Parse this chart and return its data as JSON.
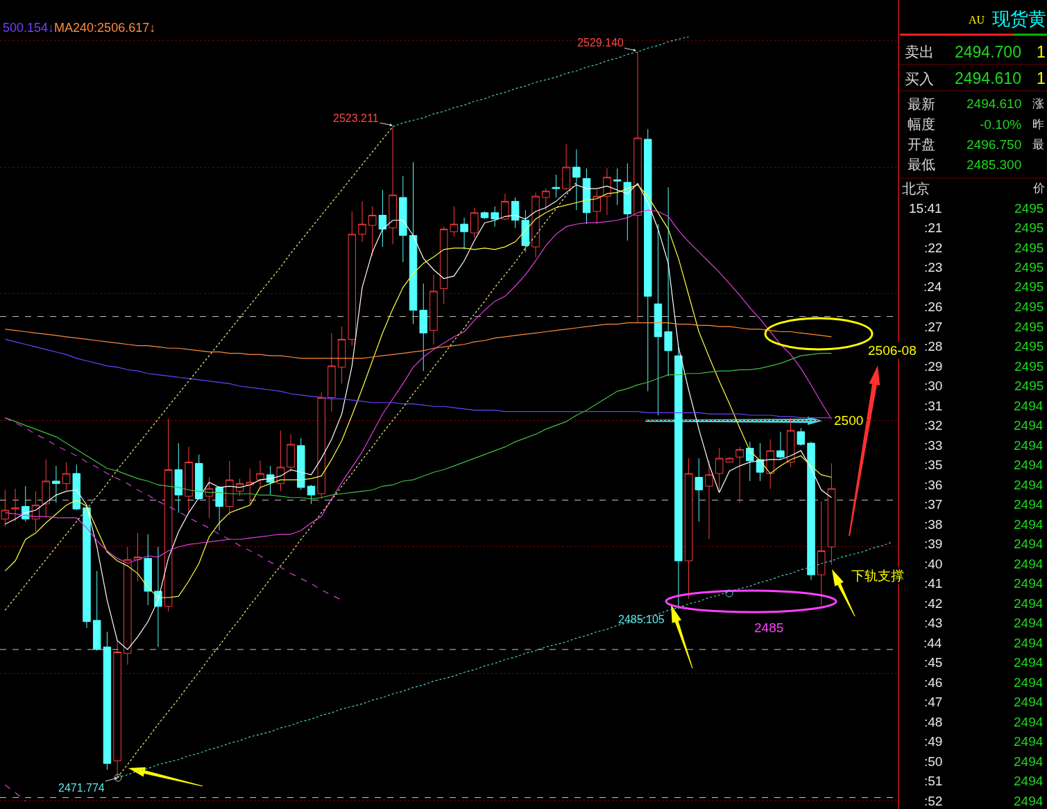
{
  "chart_data": [
    {
      "type": "candlestick",
      "categories": [
        null,
        null,
        null,
        null,
        null,
        null,
        null,
        null,
        null,
        null,
        null,
        null,
        null,
        null,
        null,
        null,
        null,
        null,
        null,
        null,
        null,
        null,
        null,
        null,
        null,
        null,
        null,
        null,
        null,
        null,
        null,
        null,
        null,
        null,
        null,
        null,
        null,
        null,
        null,
        null,
        null,
        null,
        null,
        null,
        null,
        null,
        null,
        null,
        null,
        null,
        null,
        null,
        null,
        null,
        null,
        null,
        null,
        null,
        null,
        null,
        null,
        null,
        null,
        null,
        null,
        null,
        null,
        null,
        null,
        null,
        null,
        null,
        null,
        null,
        null,
        null,
        null,
        null,
        null,
        null,
        null,
        null,
        null,
        null,
        null,
        null,
        null,
        null
      ],
      "ohlc": [
        [
          2492.2,
          2494.5,
          2491.6,
          2492.9
        ],
        [
          2493.0,
          2494.6,
          2492.0,
          2493.1
        ],
        [
          2493.2,
          2494.8,
          2492.0,
          2492.2
        ],
        [
          2492.2,
          2494.4,
          2491.2,
          2493.3
        ],
        [
          2493.4,
          2496.9,
          2492.3,
          2495.2
        ],
        [
          2495.2,
          2496.4,
          2493.5,
          2495.0
        ],
        [
          2495.0,
          2496.7,
          2494.5,
          2495.8
        ],
        [
          2495.8,
          2496.5,
          2492.9,
          2493.0
        ],
        [
          2493.1,
          2493.3,
          2483.6,
          2484.1
        ],
        [
          2484.2,
          2488.1,
          2481.8,
          2481.9
        ],
        [
          2482.1,
          2483.3,
          2472.4,
          2472.9
        ],
        [
          2473.1,
          2482.6,
          2471.774,
          2481.7
        ],
        [
          2481.6,
          2490.0,
          2480.7,
          2489.0
        ],
        [
          2489.0,
          2491.1,
          2487.3,
          2489.2
        ],
        [
          2489.1,
          2491.0,
          2485.4,
          2486.5
        ],
        [
          2486.5,
          2490.0,
          2482.1,
          2485.3
        ],
        [
          2485.3,
          2500.1,
          2484.9,
          2496.1
        ],
        [
          2496.1,
          2498.2,
          2492.7,
          2494.1
        ],
        [
          2494.0,
          2497.9,
          2492.7,
          2496.7
        ],
        [
          2496.6,
          2497.3,
          2493.7,
          2493.8
        ],
        [
          2494.0,
          2495.5,
          2492.3,
          2494.6
        ],
        [
          2494.7,
          2494.8,
          2491.3,
          2493.2
        ],
        [
          2493.2,
          2496.8,
          2492.5,
          2495.3
        ],
        [
          2494.4,
          2495.4,
          2494.0,
          2495.0
        ],
        [
          2494.9,
          2496.2,
          2493.3,
          2495.1
        ],
        [
          2495.3,
          2496.8,
          2494.7,
          2495.8
        ],
        [
          2495.7,
          2496.4,
          2494.1,
          2495.1
        ],
        [
          2495.0,
          2499.2,
          2494.4,
          2496.3
        ],
        [
          2496.3,
          2498.9,
          2495.9,
          2498.1
        ],
        [
          2498.0,
          2498.6,
          2494.5,
          2494.7
        ],
        [
          2494.8,
          2494.9,
          2493.4,
          2494.1
        ],
        [
          2494.2,
          2502.2,
          2493.8,
          2501.8
        ],
        [
          2501.8,
          2506.9,
          2500.7,
          2504.3
        ],
        [
          2504.2,
          2507.4,
          2502.9,
          2506.4
        ],
        [
          2506.4,
          2516.5,
          2505.9,
          2514.7
        ],
        [
          2514.7,
          2517.3,
          2514.1,
          2515.5
        ],
        [
          2515.4,
          2516.9,
          2513.0,
          2516.2
        ],
        [
          2516.2,
          2518.2,
          2513.7,
          2515.1
        ],
        [
          2515.2,
          2523.211,
          2513.9,
          2517.8
        ],
        [
          2517.6,
          2519.3,
          2512.5,
          2514.6
        ],
        [
          2514.6,
          2520.4,
          2507.6,
          2508.7
        ],
        [
          2508.7,
          2510.8,
          2503.9,
          2506.9
        ],
        [
          2507.1,
          2511.5,
          2506.0,
          2510.2
        ],
        [
          2510.4,
          2515.3,
          2509.2,
          2515.1
        ],
        [
          2514.9,
          2516.9,
          2514.5,
          2515.5
        ],
        [
          2515.5,
          2516.0,
          2513.5,
          2514.9
        ],
        [
          2514.8,
          2516.8,
          2514.4,
          2516.4
        ],
        [
          2516.4,
          2516.5,
          2515.9,
          2516.0
        ],
        [
          2516.4,
          2516.9,
          2515.3,
          2515.9
        ],
        [
          2515.9,
          2517.9,
          2515.8,
          2517.3
        ],
        [
          2517.3,
          2517.6,
          2515.2,
          2515.8
        ],
        [
          2515.8,
          2516.6,
          2513.3,
          2513.8
        ],
        [
          2513.7,
          2518.0,
          2512.9,
          2517.7
        ],
        [
          2517.6,
          2518.3,
          2516.6,
          2518.1
        ],
        [
          2518.4,
          2519.4,
          2517.6,
          2518.3
        ],
        [
          2518.3,
          2521.8,
          2518.2,
          2520.0
        ],
        [
          2520.0,
          2521.4,
          2516.6,
          2519.2
        ],
        [
          2519.1,
          2519.9,
          2515.5,
          2516.4
        ],
        [
          2516.5,
          2518.2,
          2515.5,
          2517.7
        ],
        [
          2517.7,
          2519.9,
          2516.2,
          2519.2
        ],
        [
          2519.0,
          2519.9,
          2517.0,
          2518.9
        ],
        [
          2518.8,
          2520.3,
          2514.2,
          2516.3
        ],
        [
          2516.2,
          2529.14,
          2507.7,
          2522.3
        ],
        [
          2522.2,
          2523.0,
          2502.3,
          2509.8
        ],
        [
          2509.2,
          2515.5,
          2500.4,
          2506.6
        ],
        [
          2507.0,
          2518.4,
          2503.5,
          2505.5
        ],
        [
          2505.1,
          2505.8,
          2485.105,
          2488.9
        ],
        [
          2488.9,
          2497.0,
          2485.9,
          2495.8
        ],
        [
          2495.5,
          2497.0,
          2492.0,
          2494.5
        ],
        [
          2494.8,
          2496.8,
          2490.6,
          2495.7
        ],
        [
          2495.8,
          2497.8,
          2494.3,
          2497.0
        ],
        [
          2496.7,
          2497.1,
          2496.7,
          2497.0
        ],
        [
          2497.1,
          2497.9,
          2493.5,
          2497.7
        ],
        [
          2497.8,
          2498.3,
          2495.2,
          2496.8
        ],
        [
          2496.9,
          2498.2,
          2495.2,
          2495.9
        ],
        [
          2495.8,
          2498.5,
          2494.6,
          2497.6
        ],
        [
          2497.6,
          2499.1,
          2496.9,
          2497.1
        ],
        [
          2496.7,
          2500.2,
          2496.3,
          2499.2
        ],
        [
          2499.1,
          2499.4,
          2498.0,
          2498.1
        ],
        [
          2498.2,
          2498.3,
          2487.4,
          2487.8
        ],
        [
          2487.8,
          2493.6,
          2485.4,
          2489.7
        ],
        [
          2490.0,
          2496.6,
          2488.6,
          2494.6
        ],
        null,
        null,
        null,
        null,
        null,
        null
      ],
      "colors": [
        "#ff3c3c",
        "#ff3c3c",
        "#54ffff",
        "#ff3c3c",
        "#ff3c3c",
        "#54ffff",
        "#ff3c3c",
        "#54ffff",
        "#54ffff",
        "#54ffff",
        "#54ffff",
        "#ff3c3c",
        "#ff3c3c",
        "#ff3c3c",
        "#54ffff",
        "#54ffff",
        "#ff3c3c",
        "#54ffff",
        "#ff3c3c",
        "#54ffff",
        "#ff3c3c",
        "#54ffff",
        "#ff3c3c",
        "#ff3c3c",
        "#ff3c3c",
        "#ff3c3c",
        "#54ffff",
        "#ff3c3c",
        "#ff3c3c",
        "#54ffff",
        "#54ffff",
        "#ff3c3c",
        "#ff3c3c",
        "#ff3c3c",
        "#ff3c3c",
        "#ff3c3c",
        "#ff3c3c",
        "#54ffff",
        "#ff3c3c",
        "#54ffff",
        "#54ffff",
        "#54ffff",
        "#ff3c3c",
        "#ff3c3c",
        "#ff3c3c",
        "#54ffff",
        "#ff3c3c",
        "#54ffff",
        "#54ffff",
        "#ff3c3c",
        "#54ffff",
        "#54ffff",
        "#ff3c3c",
        "#ff3c3c",
        "#54ffff",
        "#ff3c3c",
        "#54ffff",
        "#54ffff",
        "#ff3c3c",
        "#ff3c3c",
        "#54ffff",
        "#54ffff",
        "#ff3c3c",
        "#54ffff",
        "#54ffff",
        "#54ffff",
        "#54ffff",
        "#ff3c3c",
        "#54ffff",
        "#ff3c3c",
        "#ff3c3c",
        "#ff3c3c",
        "#ff3c3c",
        "#54ffff",
        "#54ffff",
        "#ff3c3c",
        "#54ffff",
        "#ff3c3c",
        "#54ffff",
        "#54ffff",
        "#ff3c3c",
        "#ff3c3c",
        null,
        null,
        null,
        null,
        null,
        null
      ],
      "series": [
        {
          "type": "line",
          "color": "#ffffff",
          "values": [
            2491.8,
            2492.2,
            2492.7,
            2492.9,
            2493.5,
            2494.1,
            2494.4,
            2494.5,
            2493.3,
            2490.0,
            2485.8,
            2482.6,
            2481.9,
            2482.9,
            2484.1,
            2485.8,
            2489.1,
            2491.2,
            2492.7,
            2493.9,
            2495.1,
            2494.7,
            2494.8,
            2494.7,
            2494.9,
            2495.3,
            2495.4,
            2495.6,
            2496.1,
            2495.9,
            2495.7,
            2497.0,
            2498.5,
            2500.5,
            2504.3,
            2510.5,
            2513.3,
            2515.1,
            2515.8,
            2515.8,
            2514.6,
            2512.8,
            2511.9,
            2511.2,
            2511.4,
            2512.6,
            2514.2,
            2515.6,
            2515.8,
            2516.1,
            2516.2,
            2515.9,
            2516.5,
            2516.8,
            2517.3,
            2518.0,
            2518.6,
            2518.3,
            2518.3,
            2518.5,
            2518.2,
            2517.9,
            2518.7,
            2517.2,
            2515.1,
            2512.4,
            2505.8,
            2502.4,
            2499.3,
            2496.5,
            2494.3,
            2496.0,
            2496.4,
            2496.7,
            2496.8,
            2496.9,
            2496.9,
            2497.2,
            2497.6,
            2496.2,
            2494.5,
            2493.9,
            null,
            null,
            null,
            null,
            null,
            null
          ]
        },
        {
          "type": "line",
          "color": "#ffff40",
          "values": [
            2488.1,
            2488.9,
            2490.6,
            2491.1,
            2491.9,
            2492.6,
            2493.3,
            2493.7,
            2493.2,
            2491.4,
            2489.6,
            2488.9,
            2488.5,
            2487.9,
            2486.8,
            2486.0,
            2486.0,
            2486.1,
            2487.3,
            2488.7,
            2490.8,
            2491.9,
            2492.7,
            2493.0,
            2493.3,
            2494.7,
            2495.0,
            2495.3,
            2495.3,
            2495.3,
            2495.4,
            2495.6,
            2496.9,
            2498.4,
            2500.4,
            2502.5,
            2504.7,
            2506.9,
            2508.8,
            2510.5,
            2511.6,
            2512.4,
            2512.9,
            2513.5,
            2513.6,
            2513.6,
            2513.5,
            2513.6,
            2513.5,
            2513.7,
            2514.1,
            2515.0,
            2515.9,
            2516.4,
            2516.8,
            2517.0,
            2517.2,
            2517.4,
            2517.5,
            2517.9,
            2518.0,
            2518.3,
            2518.6,
            2517.7,
            2516.4,
            2515.1,
            2512.8,
            2509.9,
            2507.0,
            2505.0,
            2503.1,
            2501.3,
            2499.4,
            2497.6,
            2496.8,
            2495.8,
            2496.4,
            2496.9,
            2497.2,
            2496.4,
            2495.7,
            2495.5,
            null,
            null,
            null,
            null,
            null,
            null
          ]
        },
        {
          "type": "line",
          "color": "#e040e0",
          "values": [
            2492.7,
            2492.6,
            2492.5,
            2492.4,
            2492.4,
            2492.3,
            2492.3,
            2492.3,
            2491.5,
            2490.5,
            2489.7,
            2489.1,
            2488.7,
            2489.0,
            2489.3,
            2489.2,
            2489.7,
            2490.0,
            2490.2,
            2490.3,
            2490.4,
            2490.5,
            2490.6,
            2490.6,
            2490.7,
            2490.8,
            2490.9,
            2491.0,
            2491.0,
            2491.3,
            2491.9,
            2492.4,
            2493.8,
            2495.1,
            2496.3,
            2497.5,
            2499.0,
            2500.5,
            2501.7,
            2502.9,
            2504.2,
            2505.0,
            2505.6,
            2506.1,
            2506.6,
            2507.0,
            2507.9,
            2508.7,
            2509.4,
            2509.8,
            2510.6,
            2511.5,
            2512.6,
            2513.8,
            2514.7,
            2515.3,
            2515.5,
            2515.6,
            2515.6,
            2515.7,
            2515.8,
            2516.0,
            2516.4,
            2516.6,
            2516.5,
            2516.1,
            2515.0,
            2514.1,
            2513.3,
            2512.5,
            2511.7,
            2510.8,
            2509.9,
            2508.9,
            2508.0,
            2507.0,
            2506.0,
            2505.2,
            2504.1,
            2502.8,
            2501.4,
            2500.1,
            null,
            null,
            null,
            null,
            null,
            null
          ]
        },
        {
          "type": "line",
          "color": "#40c040",
          "values": [
            2500.2,
            2499.9,
            2499.6,
            2499.3,
            2499.0,
            2498.7,
            2498.2,
            2497.7,
            2497.2,
            2496.7,
            2496.2,
            2496.0,
            2495.7,
            2495.4,
            2495.2,
            2494.9,
            2494.8,
            2494.7,
            2494.5,
            2494.4,
            2494.3,
            2494.3,
            2494.2,
            2494.2,
            2494.2,
            2494.1,
            2494.1,
            2494.0,
            2493.9,
            2493.9,
            2493.8,
            2493.9,
            2494.1,
            2494.2,
            2494.3,
            2494.4,
            2494.5,
            2494.8,
            2494.9,
            2495.2,
            2495.3,
            2495.6,
            2495.9,
            2496.1,
            2496.4,
            2496.7,
            2497.0,
            2497.3,
            2497.6,
            2497.9,
            2498.3,
            2498.6,
            2498.9,
            2499.3,
            2499.6,
            2499.9,
            2500.4,
            2500.8,
            2501.3,
            2501.8,
            2502.3,
            2502.5,
            2502.8,
            2503.0,
            2503.3,
            2503.6,
            2503.6,
            2503.7,
            2503.7,
            2503.8,
            2503.9,
            2503.9,
            2504.0,
            2504.0,
            2504.1,
            2504.3,
            2504.5,
            2504.8,
            2505.1,
            2505.2,
            2505.3,
            2505.3,
            null,
            null,
            null,
            null,
            null,
            null
          ]
        },
        {
          "type": "line",
          "name": "500.154↓",
          "color": "#7040ff",
          "values": [
            2506.4,
            2506.2,
            2506.0,
            2505.8,
            2505.6,
            2505.4,
            2505.2,
            2504.9,
            2504.7,
            2504.5,
            2504.3,
            2504.2,
            2504.0,
            2503.9,
            2503.7,
            2503.6,
            2503.5,
            2503.4,
            2503.3,
            2503.2,
            2503.1,
            2503.0,
            2502.9,
            2502.7,
            2502.6,
            2502.5,
            2502.4,
            2502.3,
            2502.1,
            2502.0,
            2501.9,
            2501.8,
            2501.7,
            2501.7,
            2501.6,
            2501.5,
            2501.4,
            2501.4,
            2501.4,
            2501.3,
            2501.3,
            2501.2,
            2501.1,
            2501.1,
            2501.0,
            2500.9,
            2500.8,
            2500.8,
            2500.8,
            2500.7,
            2500.7,
            2500.7,
            2500.7,
            2500.7,
            2500.7,
            2500.7,
            2500.7,
            2500.7,
            2500.7,
            2500.7,
            2500.7,
            2500.7,
            2500.7,
            2500.6,
            2500.6,
            2500.6,
            2500.6,
            2500.6,
            2500.6,
            2500.5,
            2500.5,
            2500.5,
            2500.5,
            2500.4,
            2500.4,
            2500.4,
            2500.3,
            2500.3,
            2500.2,
            2500.2,
            2500.2,
            2500.2,
            null,
            null,
            null,
            null,
            null,
            null
          ]
        },
        {
          "type": "line",
          "name": "MA240:2506.617↓",
          "color": "#ff8c3c",
          "values": [
            2507.2,
            2507.1,
            2507.0,
            2506.9,
            2506.8,
            2506.7,
            2506.6,
            2506.5,
            2506.4,
            2506.3,
            2506.2,
            2506.1,
            2506.0,
            2505.9,
            2505.9,
            2505.8,
            2505.7,
            2505.7,
            2505.6,
            2505.5,
            2505.4,
            2505.4,
            2505.3,
            2505.3,
            2505.2,
            2505.2,
            2505.1,
            2505.1,
            2505.0,
            2504.9,
            2504.9,
            2504.9,
            2504.9,
            2504.9,
            2504.9,
            2504.9,
            2505.0,
            2505.1,
            2505.2,
            2505.3,
            2505.4,
            2505.5,
            2505.7,
            2505.8,
            2505.9,
            2506.0,
            2506.2,
            2506.3,
            2506.5,
            2506.6,
            2506.7,
            2506.8,
            2506.9,
            2507.0,
            2507.1,
            2507.2,
            2507.3,
            2507.4,
            2507.5,
            2507.6,
            2507.6,
            2507.7,
            2507.7,
            2507.7,
            2507.7,
            2507.7,
            2507.6,
            2507.6,
            2507.5,
            2507.5,
            2507.4,
            2507.4,
            2507.3,
            2507.2,
            2507.2,
            2507.1,
            2507.0,
            2507.0,
            2506.9,
            2506.8,
            2506.7,
            2506.6,
            null,
            null,
            null,
            null,
            null,
            null
          ]
        },
        {
          "type": "line",
          "color": "#f0f080",
          "line_style": "dotted",
          "values": [
            2485.0,
            2486.0,
            2487.0,
            2488.0,
            2489.0,
            2490.0,
            2491.0,
            2492.0,
            2493.0,
            2494.0,
            2495.0,
            2496.1,
            2497.1,
            2498.1,
            2499.1,
            2500.1,
            2501.1,
            2502.1,
            2503.1,
            2504.1,
            2505.1,
            2506.1,
            2507.1,
            2508.1,
            2509.1,
            2510.1,
            2511.1,
            2512.1,
            2513.2,
            2514.2,
            2515.2,
            2516.2,
            2517.2,
            2518.2,
            2519.2,
            2520.2,
            2521.2,
            2522.2,
            2523.2,
            null,
            null,
            null,
            null,
            null,
            null,
            null,
            null,
            null,
            null,
            null,
            null,
            null,
            null,
            null,
            null,
            null,
            null,
            null,
            null,
            null,
            null,
            null,
            null,
            null,
            null,
            null,
            null,
            null,
            null,
            null,
            null,
            null,
            null,
            null,
            null,
            null,
            null,
            null,
            null,
            null,
            null,
            null,
            null,
            null,
            null,
            null,
            null,
            null
          ]
        },
        {
          "type": "line",
          "color": "#f0f080",
          "line_style": "dotted",
          "values": [
            null,
            null,
            null,
            null,
            null,
            null,
            null,
            null,
            null,
            null,
            null,
            2471.8,
            2472.8,
            2473.9,
            2474.9,
            2476.0,
            2477.0,
            2478.0,
            2479.1,
            2480.1,
            2481.2,
            2482.2,
            2483.3,
            2484.3,
            2485.4,
            2486.4,
            2487.5,
            2488.5,
            2489.5,
            2490.6,
            2491.6,
            2492.7,
            2493.7,
            2494.8,
            2495.8,
            2496.9,
            2497.9,
            2499.0,
            2500.0,
            2501.0,
            2502.1,
            2503.1,
            2504.2,
            2505.2,
            2506.3,
            2507.3,
            2508.4,
            2509.4,
            2510.5,
            2511.5,
            2512.5,
            2513.6,
            2514.6,
            2515.7,
            2516.7,
            2517.8,
            2518.8,
            null,
            null,
            null,
            null,
            null,
            null,
            null,
            null,
            null,
            null,
            null,
            null,
            null,
            null,
            null,
            null,
            null,
            null,
            null,
            null,
            null,
            null,
            null,
            null,
            null,
            null,
            null,
            null,
            null,
            null,
            null
          ]
        },
        {
          "type": "line",
          "color": "#50d0d0",
          "line_style": "dotted",
          "values": [
            null,
            null,
            null,
            null,
            null,
            null,
            null,
            null,
            null,
            null,
            null,
            null,
            null,
            null,
            null,
            null,
            null,
            null,
            null,
            null,
            null,
            null,
            null,
            null,
            null,
            null,
            null,
            null,
            null,
            null,
            null,
            null,
            null,
            null,
            null,
            null,
            null,
            null,
            2523.2,
            2523.5,
            2523.7,
            2523.9,
            2524.2,
            2524.4,
            2524.7,
            2524.9,
            2525.2,
            2525.4,
            2525.7,
            2525.9,
            2526.2,
            2526.4,
            2526.7,
            2526.9,
            2527.1,
            2527.4,
            2527.6,
            2527.9,
            2528.1,
            2528.4,
            2528.6,
            2528.9,
            2529.1,
            2529.4,
            2529.6,
            2529.9,
            2530.1,
            2530.3,
            null,
            null,
            null,
            null,
            null,
            null,
            null,
            null,
            null,
            null,
            null,
            null,
            null,
            null,
            null,
            null,
            null,
            null,
            null,
            null
          ]
        },
        {
          "type": "line",
          "color": "#50d0d0",
          "line_style": "dotted",
          "values": [
            null,
            null,
            null,
            null,
            null,
            null,
            null,
            null,
            null,
            null,
            null,
            2471.8,
            2472.0,
            2472.3,
            2472.5,
            2472.8,
            2473.0,
            2473.2,
            2473.5,
            2473.7,
            2474.0,
            2474.2,
            2474.5,
            2474.7,
            2475.0,
            2475.2,
            2475.4,
            2475.7,
            2475.9,
            2476.2,
            2476.4,
            2476.7,
            2476.9,
            2477.2,
            2477.4,
            2477.6,
            2477.9,
            2478.1,
            2478.4,
            2478.6,
            2478.9,
            2479.1,
            2479.4,
            2479.6,
            2479.8,
            2480.1,
            2480.3,
            2480.6,
            2480.8,
            2481.1,
            2481.3,
            2481.6,
            2481.8,
            2482.1,
            2482.3,
            2482.5,
            2482.8,
            2483.0,
            2483.3,
            2483.5,
            2483.8,
            2484.0,
            2484.2,
            2484.5,
            2484.7,
            2485.0,
            2485.2,
            2485.5,
            2485.7,
            2486.0,
            2486.2,
            2486.5,
            2486.7,
            2486.9,
            2487.2,
            2487.4,
            2487.7,
            2487.9,
            2488.2,
            2488.4,
            2488.7,
            2488.9,
            2489.2,
            2489.4,
            2489.6,
            2489.9,
            2490.1,
            2490.4
          ]
        },
        {
          "type": "line",
          "color": "#d040d0",
          "line_style": "dashed",
          "values": [
            2500.2,
            2499.8,
            2499.4,
            2498.9,
            2498.5,
            2498.0,
            2497.6,
            2497.2,
            2496.7,
            2496.3,
            2495.8,
            2495.4,
            2495.0,
            2494.5,
            2494.1,
            2493.6,
            2493.2,
            2492.8,
            2492.3,
            2491.9,
            2491.5,
            2491.0,
            2490.6,
            2490.1,
            2489.7,
            2489.3,
            2488.8,
            2488.4,
            2487.9,
            2487.5,
            2487.1,
            2486.6,
            2486.2,
            2485.8,
            null,
            null,
            null,
            null,
            null,
            null,
            null,
            null,
            null,
            null,
            null,
            null,
            null,
            null,
            null,
            null,
            null,
            null,
            null,
            null,
            null,
            null,
            null,
            null,
            null,
            null,
            null,
            null,
            null,
            null,
            null,
            null,
            null,
            null,
            null,
            null,
            null,
            null,
            null,
            null,
            null,
            null,
            null,
            null,
            null,
            null,
            null,
            null,
            null,
            null,
            null,
            null,
            null,
            null
          ]
        },
        {
          "type": "line",
          "color": "#d040d0",
          "line_style": "dashed",
          "values": [
            2471.2,
            2470.6,
            2469.9,
            null,
            null,
            null,
            null,
            null,
            null,
            null,
            null,
            null,
            null,
            null,
            null,
            null,
            null,
            null,
            null,
            null,
            null,
            null,
            null,
            null,
            null,
            null,
            null,
            null,
            null,
            null,
            null,
            null,
            null,
            null,
            null,
            null,
            null,
            null,
            null,
            null,
            null,
            null,
            null,
            null,
            null,
            null,
            null,
            null,
            null,
            null,
            null,
            null,
            null,
            null,
            null,
            null,
            null,
            null,
            null,
            null,
            null,
            null,
            null,
            null,
            null,
            null,
            null,
            null,
            null,
            null,
            null,
            null,
            null,
            null,
            null,
            null,
            null,
            null,
            null,
            null,
            null,
            null,
            null,
            null,
            null,
            null,
            null,
            null
          ]
        }
      ],
      "ylim": [
        2469.3,
        2533.2
      ],
      "yticks": [
        {
          "value": 2470,
          "label": null
        },
        {
          "value": 2480,
          "label": null
        },
        {
          "value": 2490,
          "label": null
        },
        {
          "value": 2500,
          "label": null
        },
        {
          "value": 2510,
          "label": null
        },
        {
          "value": 2520,
          "label": null
        },
        {
          "value": 2530,
          "label": null
        }
      ],
      "grid": "y",
      "tick_labels": false,
      "legend": "top left",
      "ref_lines": [
        {
          "axis": "y",
          "value": 2508.2,
          "color": "#c8c8c8",
          "line_style": "dashed"
        },
        {
          "axis": "y",
          "value": 2493.7,
          "color": "#c8c8c8",
          "line_style": "dashed"
        },
        {
          "axis": "y",
          "value": 2481.9,
          "color": "#c8c8c8",
          "line_style": "dashed"
        },
        {
          "axis": "y",
          "value": 2470.2,
          "color": "#c8c8c8",
          "line_style": "dashed"
        }
      ],
      "annotations": [
        "2529.140",
        "2523.211",
        "2471.774",
        "2485:105",
        "2506-08",
        "2500",
        "下轨支撑",
        "2485"
      ]
    },
    {
      "type": "other",
      "annotations": [
        "AU",
        "现货黄",
        "卖出",
        "2494.700",
        "1",
        "买入",
        "2494.610",
        "1",
        "最新",
        "2494.610",
        "涨",
        "幅度",
        "-0.10%",
        "昨",
        "开盘",
        "2496.750",
        "最",
        "最低",
        "2485.300",
        "北京",
        "价",
        "15:41",
        "2495",
        ":21",
        "2495",
        ":22",
        "2495",
        ":23",
        "2495",
        ":24",
        "2495",
        ":26",
        "2495",
        ":27",
        "2495",
        ":28",
        "2495",
        ":29",
        "2495",
        ":30",
        "2495",
        ":31",
        "2494",
        ":32",
        "2494",
        ":33",
        "2494",
        ":35",
        "2494",
        ":36",
        "2494",
        ":37",
        "2494",
        ":38",
        "2494",
        ":39",
        "2494",
        ":40",
        "2494",
        ":41",
        "2494",
        ":42",
        "2494",
        ":43",
        "2494",
        ":44",
        "2494",
        ":45",
        "2494",
        ":46",
        "2494",
        ":47",
        "2494",
        ":48",
        "2494",
        ":49",
        "2494",
        ":50",
        "2494",
        ":51",
        "2494",
        ":52",
        "2494"
      ]
    }
  ]
}
